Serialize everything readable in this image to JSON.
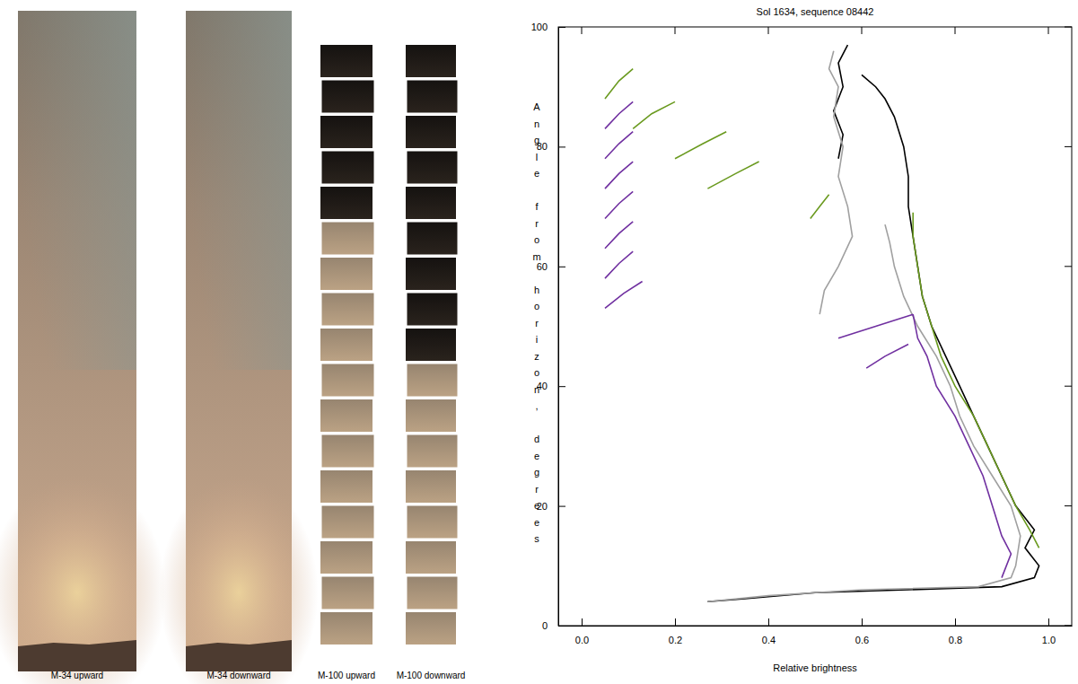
{
  "image_labels": [
    "M-34 upward",
    "M-34 downward",
    "M-100 upward",
    "M-100 downward"
  ],
  "chart_data": {
    "type": "line",
    "title": "Sol 1634, sequence 08442",
    "x_label": "Relative brightness",
    "y_label": "Angle from horizon, degrees",
    "xlim": [
      -0.05,
      1.05
    ],
    "ylim": [
      0,
      100
    ],
    "xticks": [
      {
        "value": 0,
        "label": "0.0"
      },
      {
        "value": 0.2,
        "label": "0.2"
      },
      {
        "value": 0.4,
        "label": "0.4"
      },
      {
        "value": 0.6,
        "label": "0.6"
      },
      {
        "value": 0.8,
        "label": "0.8"
      },
      {
        "value": 1,
        "label": "1.0"
      }
    ],
    "yticks": [
      0,
      20,
      40,
      60,
      80,
      100
    ],
    "grid": false,
    "series": [
      {
        "color": "#000000",
        "x": [
          0.27,
          0.35,
          0.5,
          0.7,
          0.9,
          0.97,
          0.98,
          0.95,
          0.97,
          0.93,
          0.9,
          0.87,
          0.84,
          0.81,
          0.78,
          0.75,
          0.73,
          0.72,
          0.71,
          0.7,
          0.7,
          0.69,
          0.67,
          0.65,
          0.63,
          0.6,
          null,
          0.55,
          0.56,
          0.54,
          0.56,
          0.55,
          0.57
        ],
        "values": [
          4,
          4.5,
          5.5,
          6,
          6.5,
          8,
          10,
          13,
          16,
          20,
          25,
          30,
          35,
          40,
          45,
          50,
          55,
          60,
          65,
          70,
          75,
          80,
          85,
          88,
          90,
          92,
          null,
          78,
          82,
          86,
          90,
          94,
          97
        ]
      },
      {
        "color": "#a0a0a0",
        "x": [
          0.27,
          0.4,
          0.6,
          0.85,
          0.92,
          0.93,
          0.94,
          0.92,
          0.88,
          0.84,
          0.81,
          0.79,
          0.76,
          0.72,
          0.69,
          0.67,
          0.66,
          0.65,
          null,
          0.51,
          0.52,
          0.55,
          0.58,
          0.57,
          0.55,
          0.56,
          0.54,
          0.55,
          0.53,
          0.54
        ],
        "values": [
          4,
          5,
          6,
          6.5,
          8,
          10,
          15,
          20,
          25,
          30,
          35,
          40,
          45,
          50,
          55,
          60,
          64,
          67,
          null,
          52,
          56,
          60,
          65,
          70,
          75,
          80,
          85,
          90,
          93,
          96
        ]
      },
      {
        "color": "#7030a0",
        "x": [
          0.9,
          0.92,
          0.9,
          0.88,
          0.86,
          0.83,
          0.8,
          0.76,
          0.74,
          0.72,
          0.71,
          null,
          0.71,
          0.63,
          0.55,
          null,
          0.7,
          0.65,
          0.61,
          null,
          0.05,
          0.09,
          0.13,
          null,
          0.05,
          0.08,
          0.11,
          null,
          0.05,
          0.08,
          0.11,
          null,
          0.05,
          0.08,
          0.11,
          null,
          0.05,
          0.08,
          0.11,
          null,
          0.05,
          0.08,
          0.11,
          null,
          0.05,
          0.08,
          0.11
        ],
        "values": [
          8,
          12,
          15,
          20,
          25,
          30,
          35,
          40,
          45,
          48,
          52,
          null,
          52,
          50,
          48,
          null,
          47,
          45,
          43,
          null,
          53,
          55.5,
          57.5,
          null,
          58,
          60.5,
          62.5,
          null,
          63,
          65.5,
          67.5,
          null,
          68,
          70.5,
          72.5,
          null,
          73,
          75.5,
          77.5,
          null,
          78,
          80.5,
          82.5,
          null,
          83,
          85.5,
          87.5
        ]
      },
      {
        "color": "#6a9a1f",
        "x": [
          0.98,
          0.96,
          0.93,
          0.9,
          0.87,
          0.84,
          0.8,
          0.77,
          0.75,
          0.73,
          0.72,
          0.71,
          0.71,
          null,
          0.49,
          0.51,
          0.53,
          null,
          0.05,
          0.08,
          0.11,
          null,
          0.11,
          0.15,
          0.2,
          null,
          0.2,
          0.26,
          0.31,
          null,
          0.27,
          0.33,
          0.38
        ],
        "values": [
          13,
          16,
          20,
          25,
          30,
          35,
          40,
          45,
          50,
          55,
          60,
          65,
          69,
          null,
          68,
          70,
          72,
          null,
          88,
          91,
          93,
          null,
          83,
          85.5,
          87.5,
          null,
          78,
          80.5,
          82.5,
          null,
          73,
          75.5,
          77.5
        ]
      }
    ]
  }
}
